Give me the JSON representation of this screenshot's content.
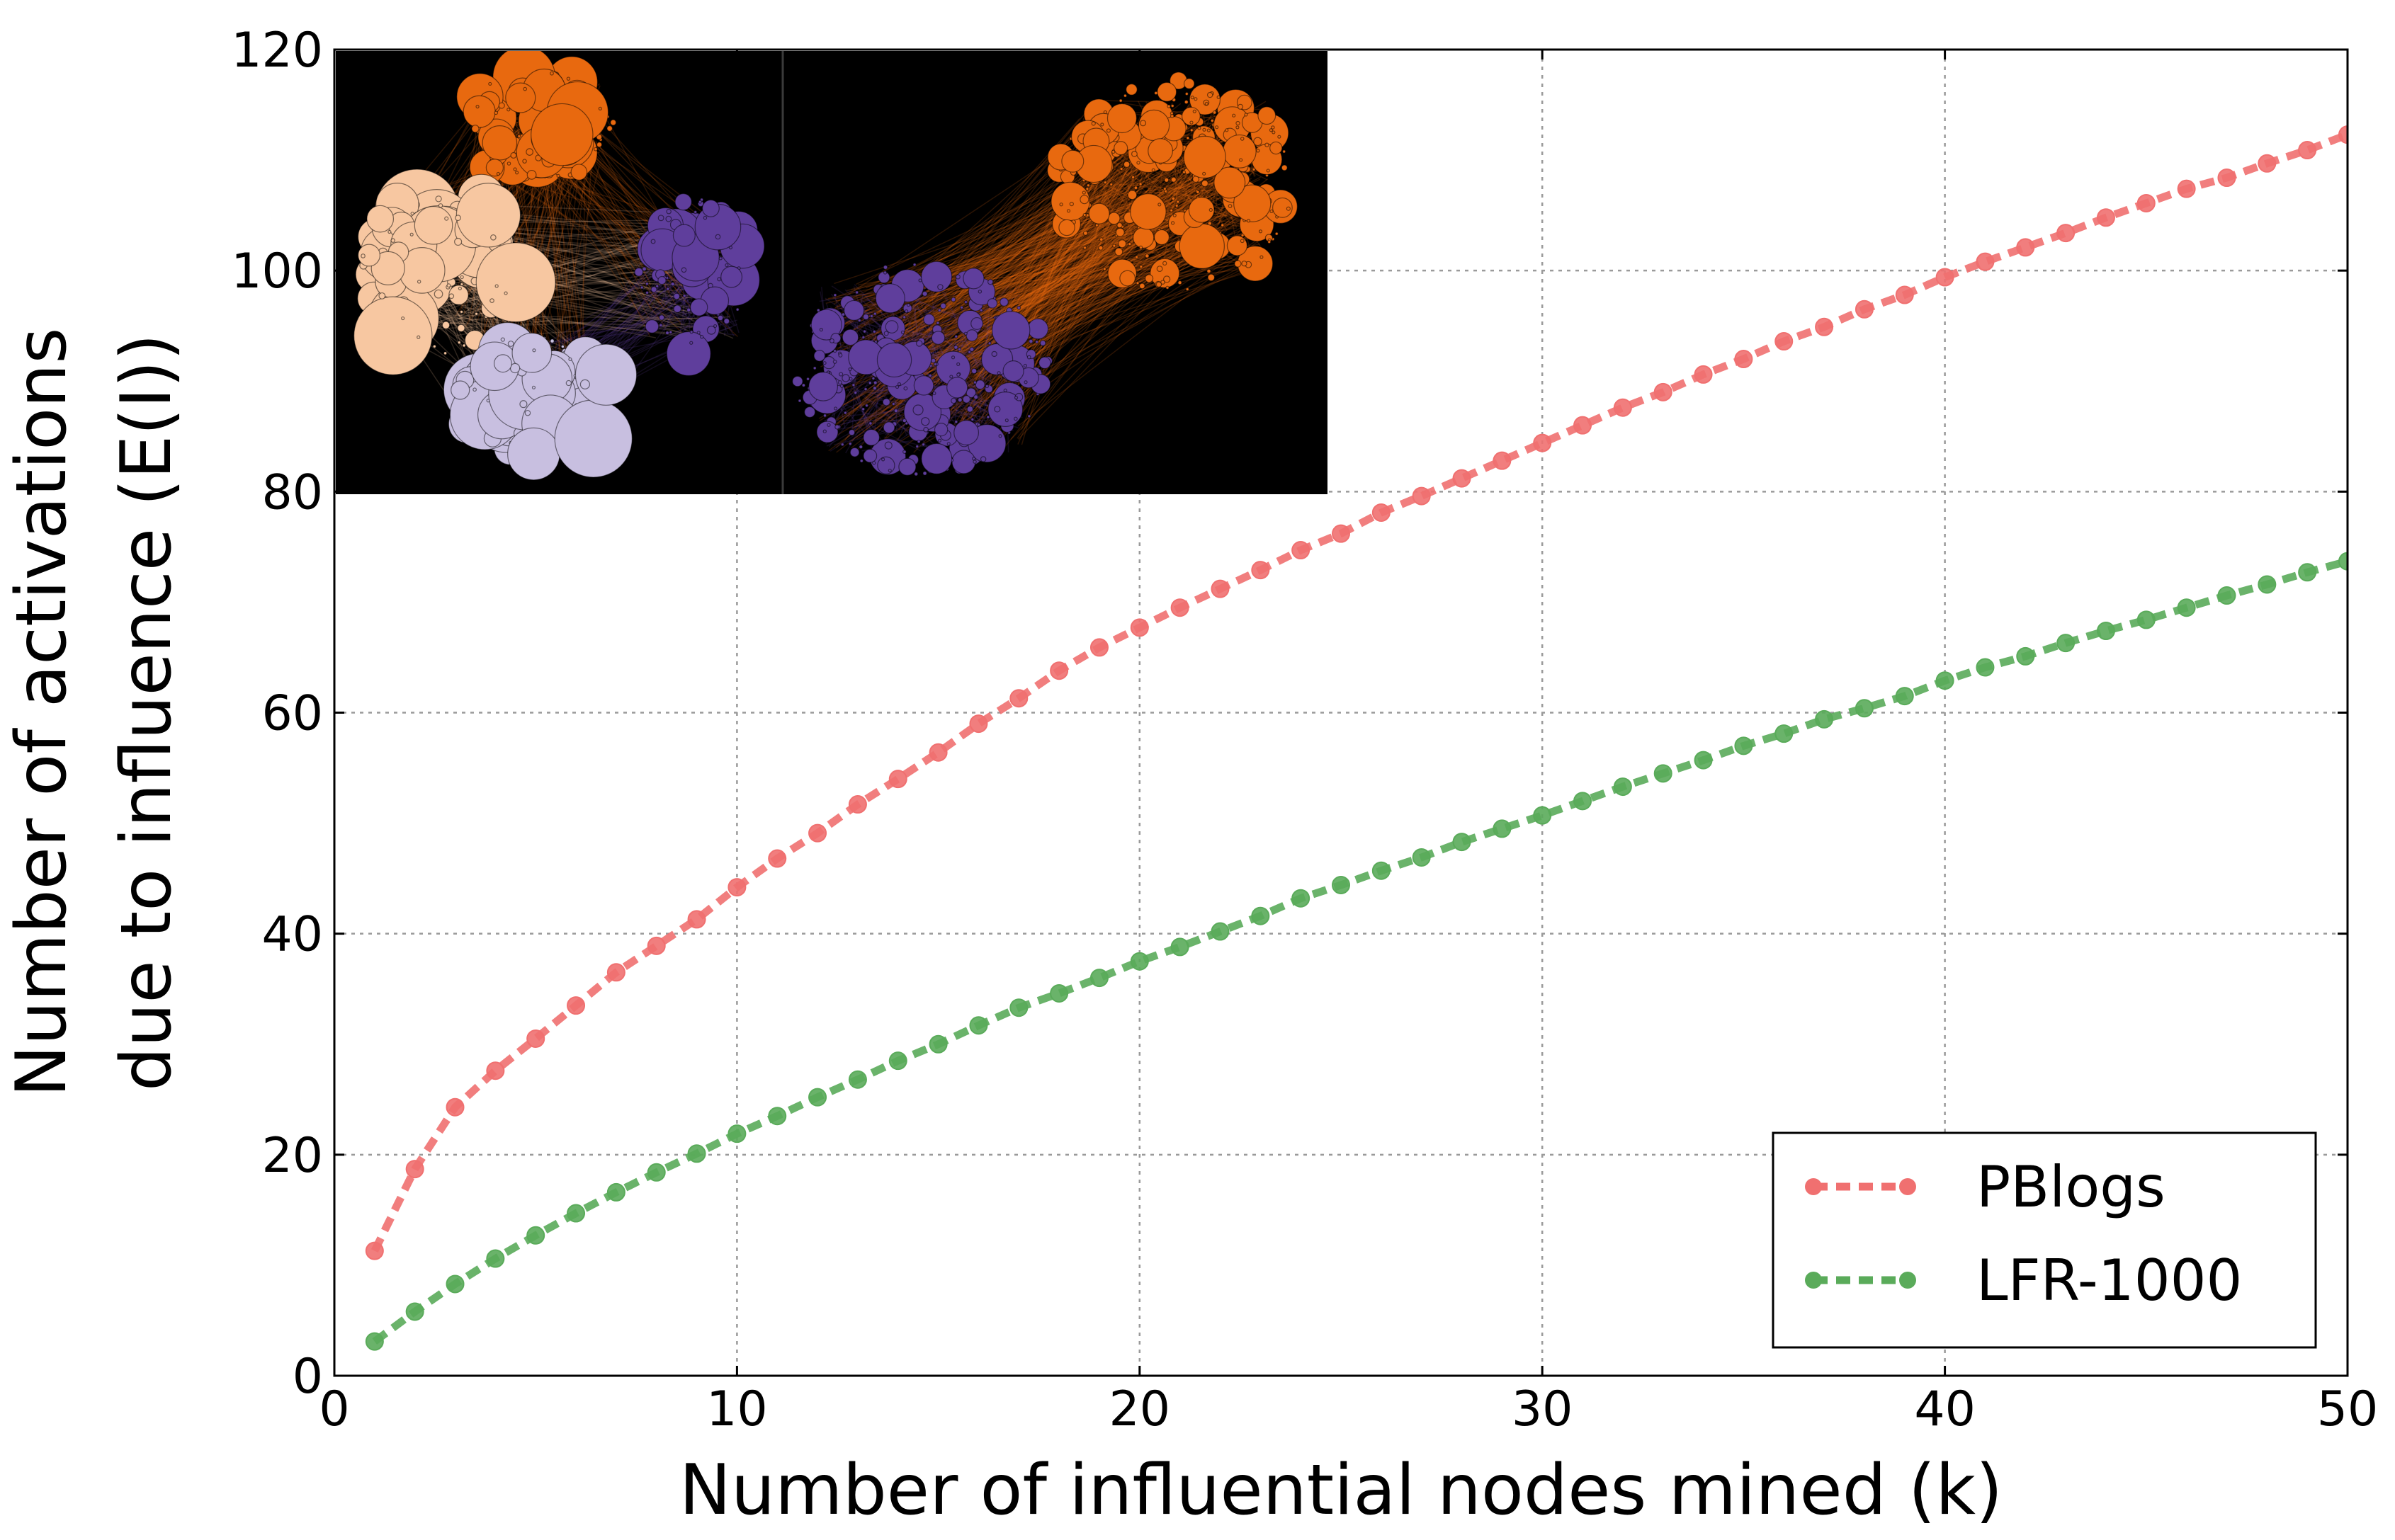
{
  "chart_data": {
    "type": "line",
    "title": "",
    "xlabel": "Number of influential nodes mined (k)",
    "ylabel_lines": [
      "Number of activations",
      "due to influence (E(I))"
    ],
    "xlim": [
      0,
      50
    ],
    "ylim": [
      0,
      120
    ],
    "xticks": [
      0,
      10,
      20,
      30,
      40,
      50
    ],
    "yticks": [
      0,
      20,
      40,
      60,
      80,
      100,
      120
    ],
    "grid": true,
    "legend_position": "lower-right",
    "x": [
      1,
      2,
      3,
      4,
      5,
      6,
      7,
      8,
      9,
      10,
      11,
      12,
      13,
      14,
      15,
      16,
      17,
      18,
      19,
      20,
      21,
      22,
      23,
      24,
      25,
      26,
      27,
      28,
      29,
      30,
      31,
      32,
      33,
      34,
      35,
      36,
      37,
      38,
      39,
      40,
      41,
      42,
      43,
      44,
      45,
      46,
      47,
      48,
      49,
      50
    ],
    "series": [
      {
        "name": "PBlogs",
        "color": "#f07070",
        "values": [
          11.3,
          18.7,
          24.3,
          27.6,
          30.5,
          33.5,
          36.5,
          38.9,
          41.3,
          44.2,
          46.8,
          49.1,
          51.7,
          54.0,
          56.4,
          59.0,
          61.3,
          63.8,
          65.9,
          67.7,
          69.5,
          71.2,
          72.9,
          74.7,
          76.2,
          78.1,
          79.6,
          81.2,
          82.8,
          84.4,
          86.0,
          87.6,
          89.0,
          90.6,
          92.0,
          93.6,
          94.9,
          96.5,
          97.8,
          99.4,
          100.8,
          102.1,
          103.4,
          104.8,
          106.1,
          107.4,
          108.4,
          109.7,
          110.9,
          112.3
        ]
      },
      {
        "name": "LFR-1000",
        "color": "#5aab5a",
        "values": [
          3.1,
          5.8,
          8.3,
          10.6,
          12.7,
          14.7,
          16.6,
          18.4,
          20.1,
          21.9,
          23.5,
          25.2,
          26.8,
          28.5,
          30.0,
          31.7,
          33.3,
          34.6,
          36.0,
          37.5,
          38.8,
          40.2,
          41.6,
          43.2,
          44.4,
          45.7,
          46.9,
          48.3,
          49.5,
          50.7,
          52.0,
          53.3,
          54.5,
          55.7,
          57.0,
          58.1,
          59.4,
          60.4,
          61.5,
          62.9,
          64.1,
          65.1,
          66.3,
          67.4,
          68.4,
          69.5,
          70.6,
          71.6,
          72.7,
          73.7
        ]
      }
    ],
    "inset": {
      "left_network_colors": [
        "#e8690f",
        "#f7c7a1",
        "#5f3e9c",
        "#c8bfe0"
      ],
      "right_network_colors": [
        "#e8690f",
        "#5f3e9c"
      ]
    }
  }
}
